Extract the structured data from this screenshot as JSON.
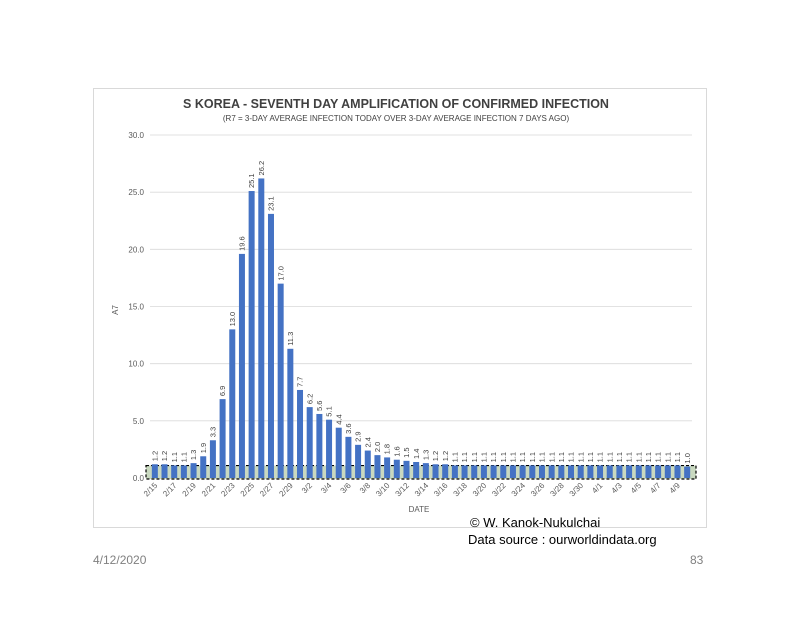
{
  "chart_data": {
    "type": "bar",
    "title": "S KOREA - SEVENTH DAY AMPLIFICATION OF CONFIRMED INFECTION",
    "subtitle": "(R7 = 3-DAY AVERAGE INFECTION TODAY OVER 3-DAY AVERAGE INFECTION 7 DAYS AGO)",
    "xlabel": "DATE",
    "ylabel": "A7",
    "ylim": [
      0,
      30
    ],
    "yticks": [
      "0.0",
      "5.0",
      "10.0",
      "15.0",
      "20.0",
      "25.0",
      "30.0"
    ],
    "ytick_values": [
      0,
      5,
      10,
      15,
      20,
      25,
      30
    ],
    "xtick_labels": [
      "2/15",
      "2/17",
      "2/19",
      "2/21",
      "2/23",
      "2/25",
      "2/27",
      "2/29",
      "3/2",
      "3/4",
      "3/6",
      "3/8",
      "3/10",
      "3/12",
      "3/14",
      "3/16",
      "3/18",
      "3/20",
      "3/22",
      "3/24",
      "3/26",
      "3/28",
      "3/30",
      "4/1",
      "4/3",
      "4/5",
      "4/7",
      "4/9"
    ],
    "values": [
      1.2,
      1.2,
      1.1,
      1.1,
      1.3,
      1.9,
      3.3,
      6.9,
      13.0,
      19.6,
      25.1,
      26.2,
      23.1,
      17.0,
      11.3,
      7.7,
      6.2,
      5.6,
      5.1,
      4.4,
      3.6,
      2.9,
      2.4,
      2.0,
      1.8,
      1.6,
      1.5,
      1.4,
      1.3,
      1.2,
      1.2,
      1.1,
      1.1,
      1.1,
      1.1,
      1.1,
      1.1,
      1.1,
      1.1,
      1.1,
      1.1,
      1.1,
      1.1,
      1.1,
      1.1,
      1.1,
      1.1,
      1.1,
      1.1,
      1.1,
      1.1,
      1.1,
      1.1,
      1.1,
      1.1,
      1.0
    ],
    "value_labels": [
      "1.2",
      "1.2",
      "1.1",
      "1.1",
      "1.3",
      "1.9",
      "3.3",
      "6.9",
      "13.0",
      "19.6",
      "25.1",
      "26.2",
      "23.1",
      "17.0",
      "11.3",
      "7.7",
      "6.2",
      "5.6",
      "5.1",
      "4.4",
      "3.6",
      "2.9",
      "2.4",
      "2.0",
      "1.8",
      "1.6",
      "1.5",
      "1.4",
      "1.3",
      "1.2",
      "1.2",
      "1.1",
      "1.1",
      "1.1",
      "1.1",
      "1.1",
      "1.1",
      "1.1",
      "1.1",
      "1.1",
      "1.1",
      "1.1",
      "1.1",
      "1.1",
      "1.1",
      "1.1",
      "1.1",
      "1.1",
      "1.1",
      "1.1",
      "1.1",
      "1.1",
      "1.1",
      "1.1",
      "1.1",
      "1.0"
    ],
    "highlight_band": [
      0,
      1
    ],
    "colors": {
      "bar": "#4472C4",
      "band": "#C9D9C0",
      "grid": "#D9D9D9"
    }
  },
  "credit": {
    "author": "© W. Kanok-Nukulchai",
    "source": "Data source : ourworldindata.org"
  },
  "footer": {
    "date": "4/12/2020",
    "page": "83"
  }
}
